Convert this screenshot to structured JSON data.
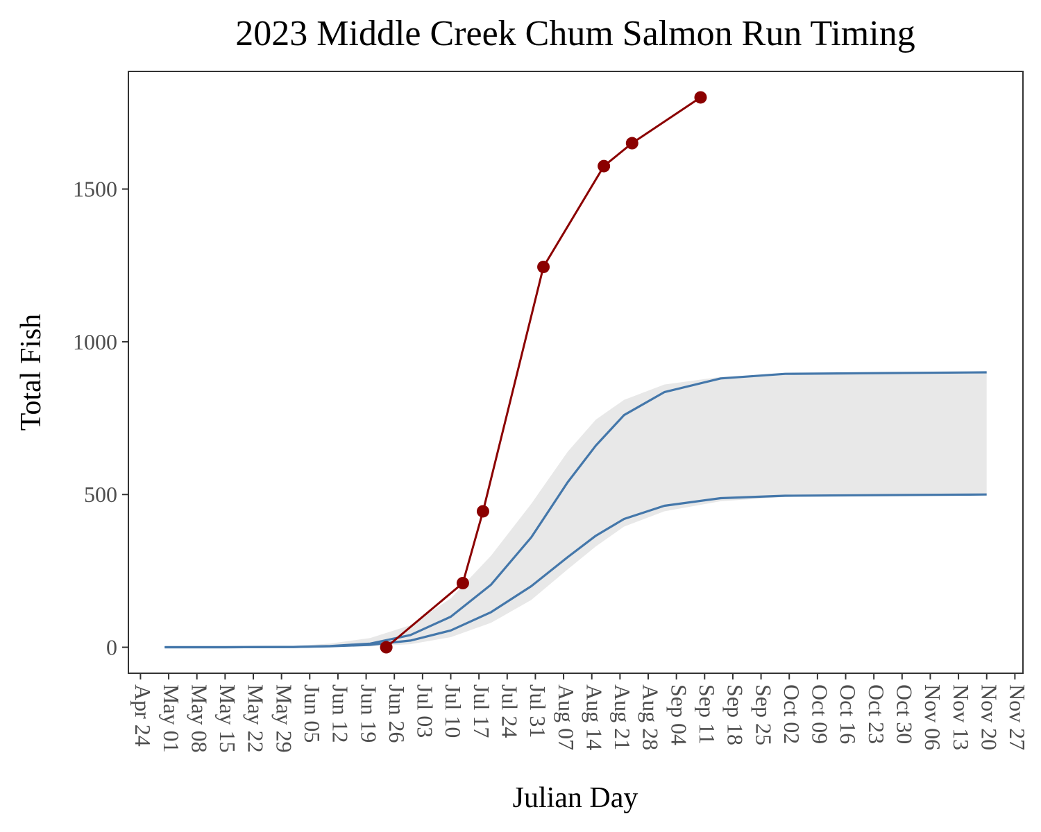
{
  "chart_data": {
    "type": "line",
    "title": "2023 Middle Creek Chum Salmon Run Timing",
    "xlabel": "Julian Day",
    "ylabel": "Total Fish",
    "x_tick_labels": [
      "Apr 24",
      "May 01",
      "May 08",
      "May 15",
      "May 22",
      "May 29",
      "Jun 05",
      "Jun 12",
      "Jun 19",
      "Jun 26",
      "Jul 03",
      "Jul 10",
      "Jul 17",
      "Jul 24",
      "Jul 31",
      "Aug 07",
      "Aug 14",
      "Aug 21",
      "Aug 28",
      "Sep 04",
      "Sep 11",
      "Sep 18",
      "Sep 25",
      "Oct 02",
      "Oct 09",
      "Oct 16",
      "Oct 23",
      "Oct 30",
      "Nov 06",
      "Nov 13",
      "Nov 20",
      "Nov 27"
    ],
    "y_ticks": [
      0,
      500,
      1000,
      1500
    ],
    "y_tick_labels": [
      "0",
      "500",
      "1000",
      "1500"
    ],
    "xlim": [
      "2023-04-21",
      "2023-11-29"
    ],
    "ylim": [
      -85,
      1885
    ],
    "grid": false,
    "colors": {
      "observed": "#8b0000",
      "expected": "#4477aa",
      "ribbon": "#e8e8e8",
      "panel_border": "#333333"
    },
    "series": [
      {
        "style": "line-with-points",
        "color": "#8b0000",
        "x": [
          "2023-06-24",
          "2023-07-13",
          "2023-07-18",
          "2023-08-02",
          "2023-08-17",
          "2023-08-24",
          "2023-09-10"
        ],
        "y": [
          0,
          210,
          445,
          1245,
          1575,
          1650,
          1800
        ]
      },
      {
        "style": "line",
        "color": "#4477aa",
        "x": [
          "2023-04-30",
          "2023-05-15",
          "2023-06-01",
          "2023-06-10",
          "2023-06-20",
          "2023-06-30",
          "2023-07-10",
          "2023-07-20",
          "2023-07-30",
          "2023-08-08",
          "2023-08-15",
          "2023-08-22",
          "2023-09-01",
          "2023-09-15",
          "2023-10-01",
          "2023-11-20"
        ],
        "y": [
          0,
          0,
          1,
          4,
          12,
          40,
          100,
          205,
          360,
          540,
          660,
          760,
          835,
          880,
          895,
          900
        ]
      },
      {
        "style": "line",
        "color": "#4477aa",
        "x": [
          "2023-04-30",
          "2023-05-15",
          "2023-06-01",
          "2023-06-10",
          "2023-06-20",
          "2023-06-30",
          "2023-07-10",
          "2023-07-20",
          "2023-07-30",
          "2023-08-08",
          "2023-08-15",
          "2023-08-22",
          "2023-09-01",
          "2023-09-15",
          "2023-10-01",
          "2023-11-20"
        ],
        "y": [
          0,
          0,
          1,
          3,
          8,
          22,
          55,
          115,
          200,
          295,
          365,
          420,
          463,
          488,
          496,
          500
        ]
      }
    ],
    "ribbon": {
      "x": [
        "2023-04-30",
        "2023-05-15",
        "2023-06-01",
        "2023-06-10",
        "2023-06-20",
        "2023-06-30",
        "2023-07-10",
        "2023-07-20",
        "2023-07-30",
        "2023-08-08",
        "2023-08-15",
        "2023-08-22",
        "2023-09-01",
        "2023-09-15",
        "2023-10-01",
        "2023-11-20"
      ],
      "upper": [
        0,
        1,
        4,
        12,
        30,
        72,
        160,
        300,
        470,
        640,
        745,
        810,
        860,
        885,
        895,
        900
      ],
      "lower": [
        0,
        0,
        0,
        1,
        3,
        10,
        33,
        80,
        155,
        255,
        330,
        395,
        445,
        478,
        492,
        500
      ]
    }
  }
}
